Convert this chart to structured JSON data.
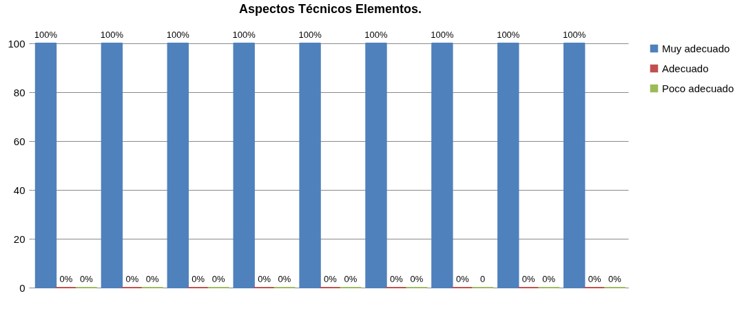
{
  "chart_data": {
    "type": "bar",
    "title": "Aspectos Técnicos Elementos.",
    "categories": [
      null,
      null,
      null,
      null,
      null,
      null,
      null,
      null,
      null
    ],
    "series": [
      {
        "name": "Muy adecuado",
        "color": "#4f81bd",
        "values": [
          100,
          100,
          100,
          100,
          100,
          100,
          100,
          100,
          100
        ],
        "value_labels": [
          "100%",
          "100%",
          "100%",
          "100%",
          "100%",
          "100%",
          "100%",
          "100%",
          "100%"
        ]
      },
      {
        "name": "Adecuado",
        "color": "#c0504d",
        "values": [
          0,
          0,
          0,
          0,
          0,
          0,
          0,
          0,
          0
        ],
        "value_labels": [
          "0%",
          "0%",
          "0%",
          "0%",
          "0%",
          "0%",
          "0%",
          "0%",
          "0%"
        ]
      },
      {
        "name": "Poco adecuado",
        "color": "#9bbb59",
        "values": [
          0,
          0,
          0,
          0,
          0,
          0,
          0,
          0,
          0
        ],
        "value_labels": [
          "0%",
          "0%",
          "0%",
          "0%",
          "0%",
          "0%",
          "0",
          "0%",
          "0%"
        ]
      }
    ],
    "ylim": [
      0,
      100
    ],
    "yticks": [
      0,
      20,
      40,
      60,
      80,
      100
    ],
    "grid": "y",
    "legend": "right"
  }
}
